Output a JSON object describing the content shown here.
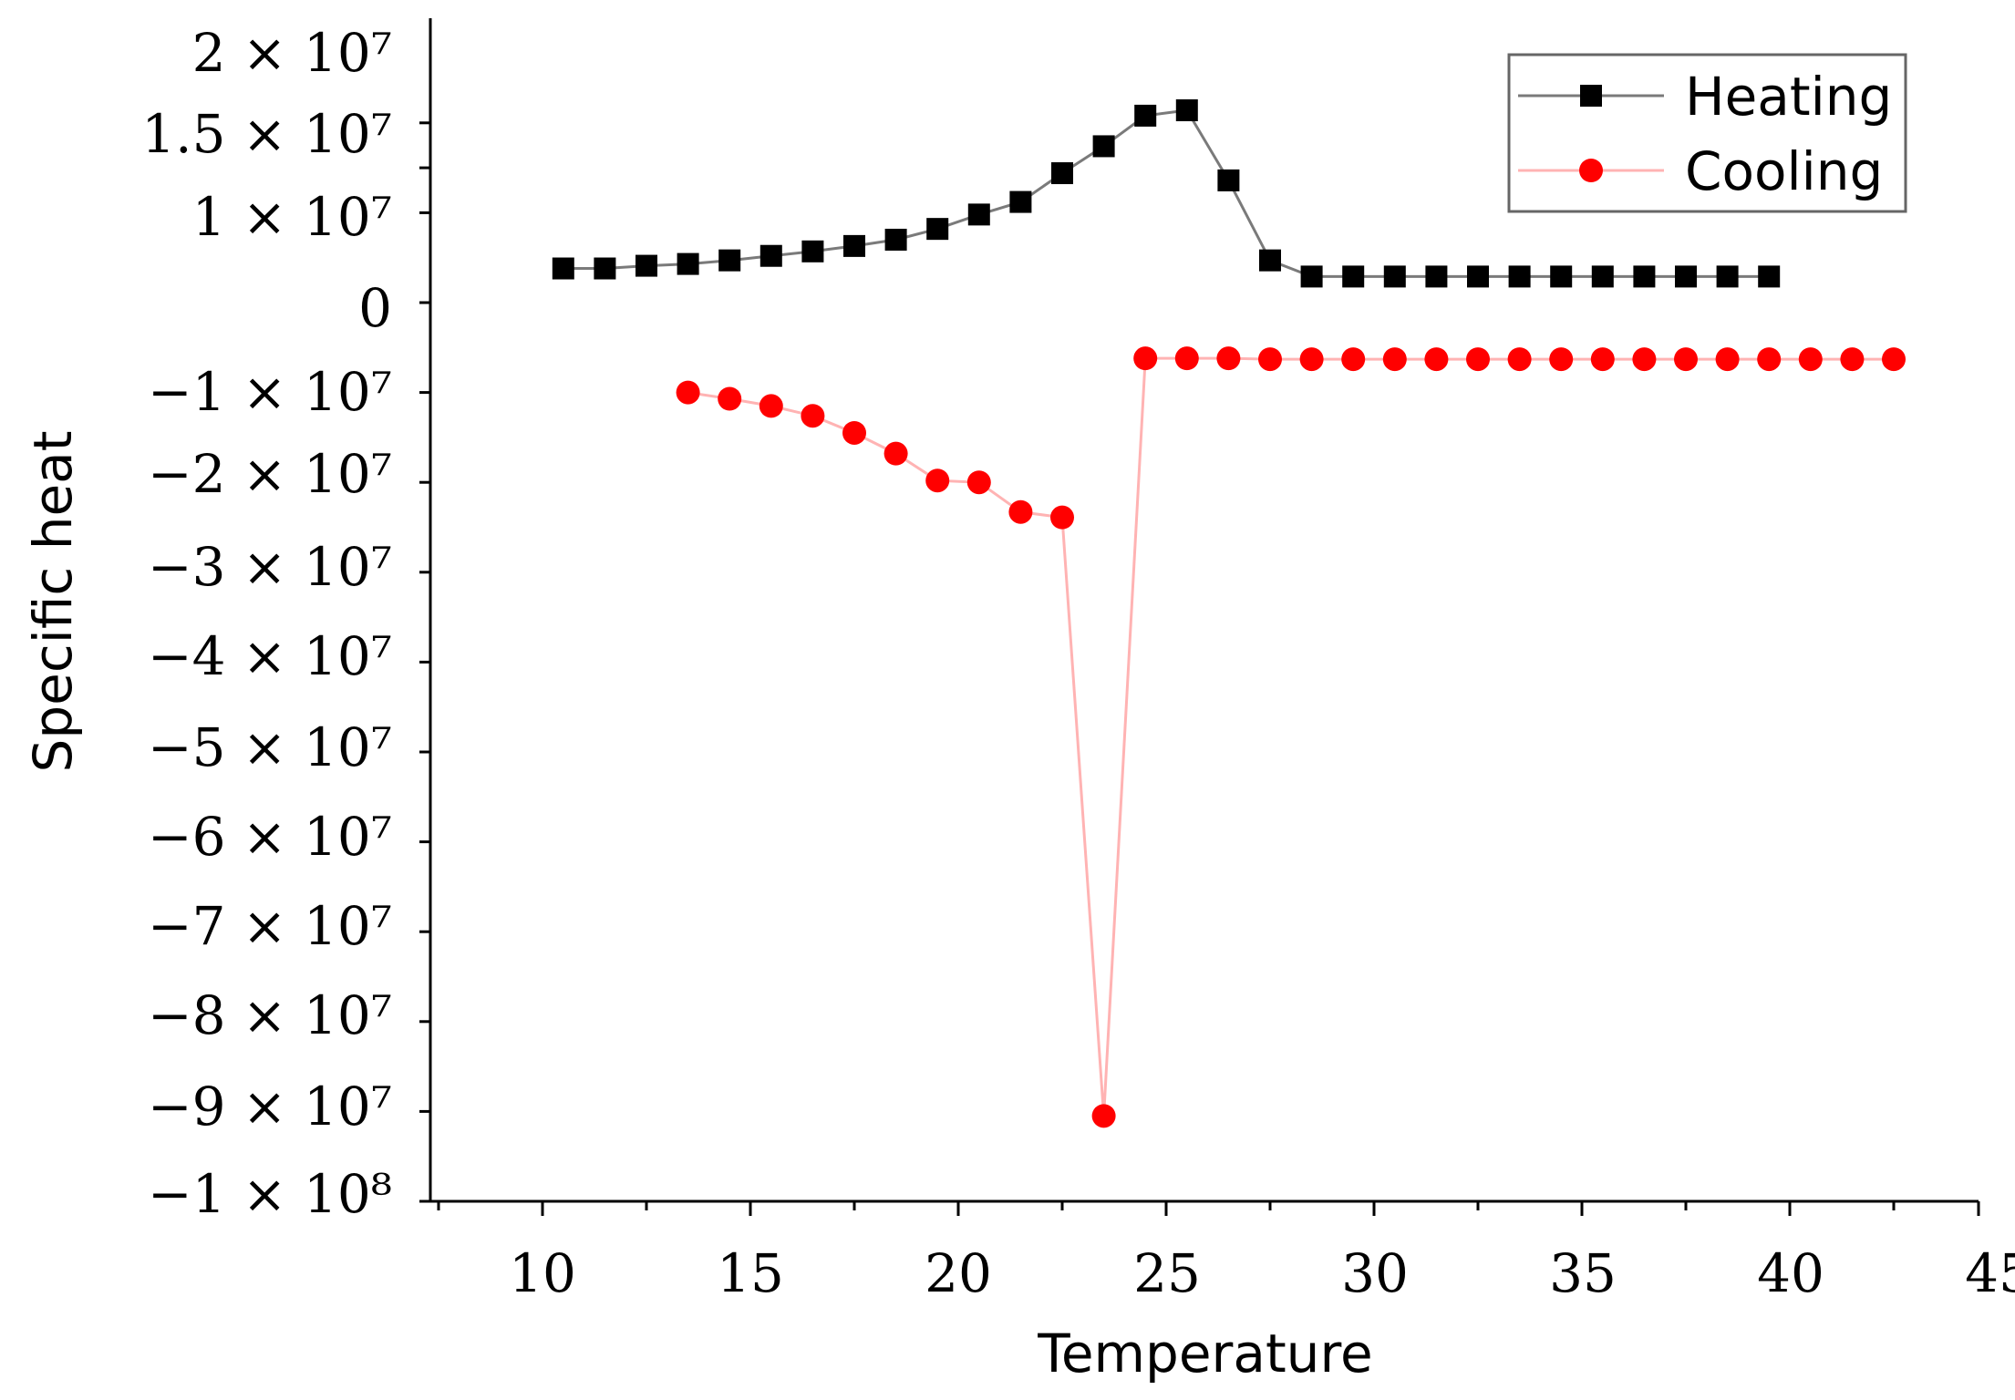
{
  "chart_data": {
    "type": "line",
    "title": "",
    "xlabel": "Temperature",
    "ylabel": "Specific heat",
    "xlim": [
      7.5,
      45
    ],
    "ylim": [
      -100000000,
      20000000
    ],
    "x_ticks": [
      10,
      15,
      20,
      25,
      30,
      35,
      40,
      45
    ],
    "x_tick_labels": [
      "10",
      "15",
      "20",
      "25",
      "30",
      "35",
      "40",
      "45"
    ],
    "y_ticks": [
      20000000,
      15000000,
      10000000,
      0,
      -10000000,
      -20000000,
      -30000000,
      -40000000,
      -50000000,
      -60000000,
      -70000000,
      -80000000,
      -90000000,
      -100000000
    ],
    "y_tick_labels": [
      "2 × 10⁷",
      "1.5 × 10⁷",
      "1 × 10⁷",
      "0",
      "−1 × 10⁷",
      "−2 × 10⁷",
      "−3 × 10⁷",
      "−4 × 10⁷",
      "−5 × 10⁷",
      "−6 × 10⁷",
      "−7 × 10⁷",
      "−8 × 10⁷",
      "−9 × 10⁷",
      "−1 × 10⁸"
    ],
    "grid": false,
    "legend_position": "top-right",
    "series": [
      {
        "name": "Heating",
        "marker": "square",
        "color": "#000000",
        "line_color": "#7a7a7a",
        "x": [
          10.5,
          11.5,
          12.5,
          13.5,
          14.5,
          15.5,
          16.5,
          17.5,
          18.5,
          19.5,
          20.5,
          21.5,
          22.5,
          23.5,
          24.5,
          25.5,
          26.5,
          27.5,
          28.5,
          29.5,
          30.5,
          31.5,
          32.5,
          33.5,
          34.5,
          35.5,
          36.5,
          37.5,
          38.5,
          39.5
        ],
        "values": [
          3800000,
          3800000,
          4100000,
          4300000,
          4700000,
          5200000,
          5700000,
          6300000,
          7000000,
          8200000,
          9800000,
          11200000,
          14400000,
          17400000,
          20800000,
          21400000,
          13600000,
          4700000,
          2900000,
          2900000,
          2900000,
          2900000,
          2900000,
          2900000,
          2900000,
          2900000,
          2900000,
          2900000,
          2900000,
          2900000
        ]
      },
      {
        "name": "Cooling",
        "marker": "circle",
        "color": "#ff0000",
        "line_color": "#ffb3b3",
        "x": [
          13.5,
          14.5,
          15.5,
          16.5,
          17.5,
          18.5,
          19.5,
          20.5,
          21.5,
          22.5,
          23.5,
          24.5,
          25.5,
          26.5,
          27.5,
          28.5,
          29.5,
          30.5,
          31.5,
          32.5,
          33.5,
          34.5,
          35.5,
          36.5,
          37.5,
          38.5,
          39.5,
          40.5,
          41.5,
          42.5
        ],
        "values": [
          -10000000,
          -10700000,
          -11500000,
          -12600000,
          -14500000,
          -16800000,
          -19800000,
          -20000000,
          -23300000,
          -23900000,
          -90500000,
          -6200000,
          -6200000,
          -6200000,
          -6300000,
          -6300000,
          -6300000,
          -6300000,
          -6300000,
          -6300000,
          -6300000,
          -6300000,
          -6300000,
          -6300000,
          -6300000,
          -6300000,
          -6300000,
          -6300000,
          -6300000,
          -6300000
        ]
      }
    ]
  }
}
